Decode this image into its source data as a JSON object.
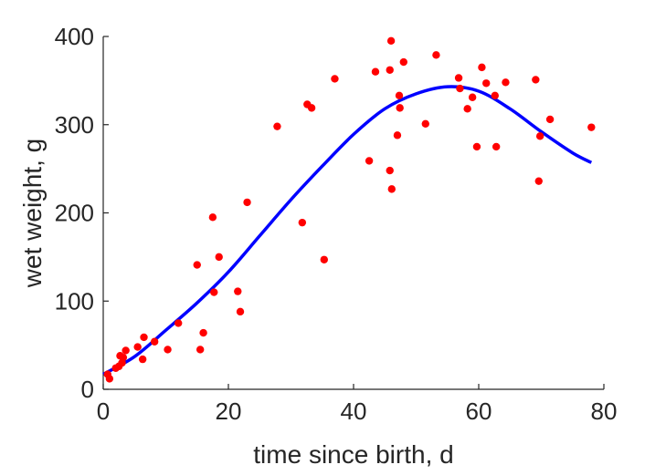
{
  "chart_data": {
    "type": "scatter",
    "xlabel": "time since birth, d",
    "ylabel": "wet weight, g",
    "xlim": [
      0,
      80
    ],
    "ylim": [
      0,
      400
    ],
    "xticks": [
      "0",
      "20",
      "40",
      "60",
      "80"
    ],
    "yticks": [
      "0",
      "100",
      "200",
      "300",
      "400"
    ],
    "grid": false,
    "series": [
      {
        "kind": "points",
        "color": "#ff0000",
        "x": [
          0.7,
          1.0,
          2.0,
          2.5,
          2.7,
          3.0,
          3.2,
          3.6,
          5.5,
          6.3,
          6.5,
          8.2,
          10.3,
          12.0,
          15.0,
          15.5,
          16.0,
          17.5,
          17.7,
          18.5,
          21.5,
          21.9,
          23.0,
          27.8,
          31.8,
          32.6,
          33.3,
          35.3,
          37.0,
          42.5,
          43.5,
          45.8,
          45.8,
          46.0,
          46.1,
          47.0,
          47.3,
          47.4,
          48.0,
          51.5,
          53.2,
          56.8,
          57.0,
          58.2,
          59.0,
          59.7,
          60.5,
          61.2,
          62.6,
          62.8,
          64.3,
          69.1,
          69.6,
          69.8,
          71.4,
          78.0
        ],
        "y": [
          17,
          12,
          24,
          26,
          38,
          30,
          36,
          44,
          48,
          34,
          59,
          54,
          45,
          75,
          141,
          45,
          64,
          195,
          110,
          150,
          111,
          88,
          212,
          298,
          189,
          323,
          319,
          147,
          352,
          259,
          360,
          362,
          248,
          395,
          227,
          288,
          333,
          319,
          371,
          301,
          379,
          353,
          341,
          318,
          331,
          275,
          365,
          347,
          333,
          275,
          348,
          351,
          236,
          287,
          306,
          297
        ]
      },
      {
        "kind": "line",
        "color": "#0000ff",
        "x": [
          0,
          5,
          10,
          15,
          20,
          25,
          30,
          35,
          40,
          45,
          50,
          55,
          60,
          65,
          70,
          75,
          78
        ],
        "y": [
          17,
          37,
          67,
          98,
          133,
          174,
          215,
          253,
          289,
          318,
          335,
          343,
          338,
          318,
          292,
          268,
          257
        ]
      }
    ]
  }
}
